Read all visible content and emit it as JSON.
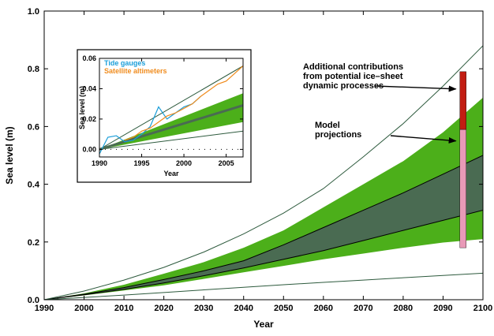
{
  "chart_data": {
    "type": "area",
    "xlabel": "Year",
    "ylabel": "Sea level (m)",
    "xlim": [
      1990,
      2100
    ],
    "ylim": [
      0,
      1.0
    ],
    "xticks": [
      "1990",
      "2000",
      "2010",
      "2020",
      "2030",
      "2040",
      "2050",
      "2060",
      "2070",
      "2080",
      "2090",
      "2100"
    ],
    "yticks": [
      "0.0",
      "0.2",
      "0.4",
      "0.6",
      "0.8",
      "1.0"
    ],
    "x": [
      1990,
      2000,
      2010,
      2020,
      2030,
      2040,
      2050,
      2060,
      2070,
      2080,
      2090,
      2100
    ],
    "bands": [
      {
        "role": "outer-range",
        "color": "#4caf1a",
        "lower": [
          0.0,
          0.015,
          0.032,
          0.05,
          0.072,
          0.095,
          0.117,
          0.14,
          0.16,
          0.18,
          0.198,
          0.21
        ],
        "upper": [
          0.0,
          0.022,
          0.052,
          0.09,
          0.13,
          0.18,
          0.24,
          0.32,
          0.4,
          0.48,
          0.58,
          0.7
        ]
      },
      {
        "role": "inner-range",
        "color": "#4a6b52",
        "lower": [
          0.0,
          0.017,
          0.036,
          0.058,
          0.083,
          0.11,
          0.14,
          0.17,
          0.205,
          0.24,
          0.275,
          0.31
        ],
        "upper": [
          0.0,
          0.019,
          0.042,
          0.07,
          0.1,
          0.135,
          0.19,
          0.25,
          0.31,
          0.37,
          0.435,
          0.5
        ]
      }
    ],
    "lines": [
      {
        "role": "upper-envelope",
        "color": "#2d5a3d",
        "values": [
          0.0,
          0.03,
          0.068,
          0.112,
          0.165,
          0.228,
          0.3,
          0.385,
          0.495,
          0.61,
          0.74,
          0.88
        ]
      },
      {
        "role": "lower-envelope",
        "color": "#2d5a3d",
        "values": [
          0.0,
          0.008,
          0.016,
          0.025,
          0.034,
          0.043,
          0.052,
          0.06,
          0.068,
          0.076,
          0.084,
          0.092
        ]
      }
    ],
    "bar": {
      "x": 2095,
      "lower": 0.18,
      "mid": 0.59,
      "upper": 0.79,
      "lower_color": "#e89ab7",
      "upper_color": "#c21d12"
    },
    "annotations": [
      {
        "text": [
          "Additional contributions",
          "from potential ice–sheet",
          "dynamic processes"
        ],
        "target_x": 2094,
        "target_y": 0.73
      },
      {
        "text": [
          "Model",
          "projections"
        ],
        "target_x": 2094,
        "target_y": 0.55
      }
    ],
    "inset": {
      "type": "line",
      "xlabel": "Year",
      "ylabel": "Sea level (m)",
      "xlim": [
        1990,
        2007
      ],
      "ylim": [
        -0.005,
        0.06
      ],
      "xticks": [
        "1990",
        "1995",
        "2000",
        "2005"
      ],
      "yticks": [
        "0.00",
        "0.02",
        "0.04",
        "0.06"
      ],
      "legend": [
        "Tide gauges",
        "Satellite altimeters"
      ],
      "legend_colors": [
        "#1a9ed9",
        "#f08c1e"
      ],
      "band": {
        "x": [
          1990,
          2007
        ],
        "lower": [
          0.0,
          0.018
        ],
        "upper": [
          0.0,
          0.037
        ],
        "color": "#4caf1a"
      },
      "central_line": {
        "x": [
          1990,
          2007
        ],
        "values": [
          0.0,
          0.029
        ],
        "color": "#4a6b52"
      },
      "upper_line": {
        "x": [
          1990,
          2007
        ],
        "values": [
          0.0,
          0.055
        ],
        "color": "#2d5a3d"
      },
      "lower_line": {
        "x": [
          1990,
          2007
        ],
        "values": [
          0.0,
          0.012
        ],
        "color": "#2d5a3d"
      },
      "series": [
        {
          "name": "Tide gauges",
          "color": "#1a9ed9",
          "x": [
            1990,
            1991,
            1992,
            1993,
            1994,
            1995,
            1996,
            1997,
            1998,
            1999,
            2000,
            2001,
            2002
          ],
          "values": [
            -0.003,
            0.008,
            0.009,
            0.005,
            0.006,
            0.01,
            0.015,
            0.028,
            0.02,
            0.024,
            0.028,
            0.03,
            0.035
          ]
        },
        {
          "name": "Satellite altimeters",
          "color": "#f08c1e",
          "x": [
            1993,
            1994,
            1995,
            1996,
            1997,
            1998,
            1999,
            2000,
            2001,
            2002,
            2003,
            2004,
            2005,
            2006,
            2007
          ],
          "values": [
            0.006,
            0.008,
            0.012,
            0.014,
            0.018,
            0.022,
            0.024,
            0.027,
            0.03,
            0.035,
            0.039,
            0.043,
            0.045,
            0.05,
            0.055
          ]
        }
      ]
    }
  }
}
